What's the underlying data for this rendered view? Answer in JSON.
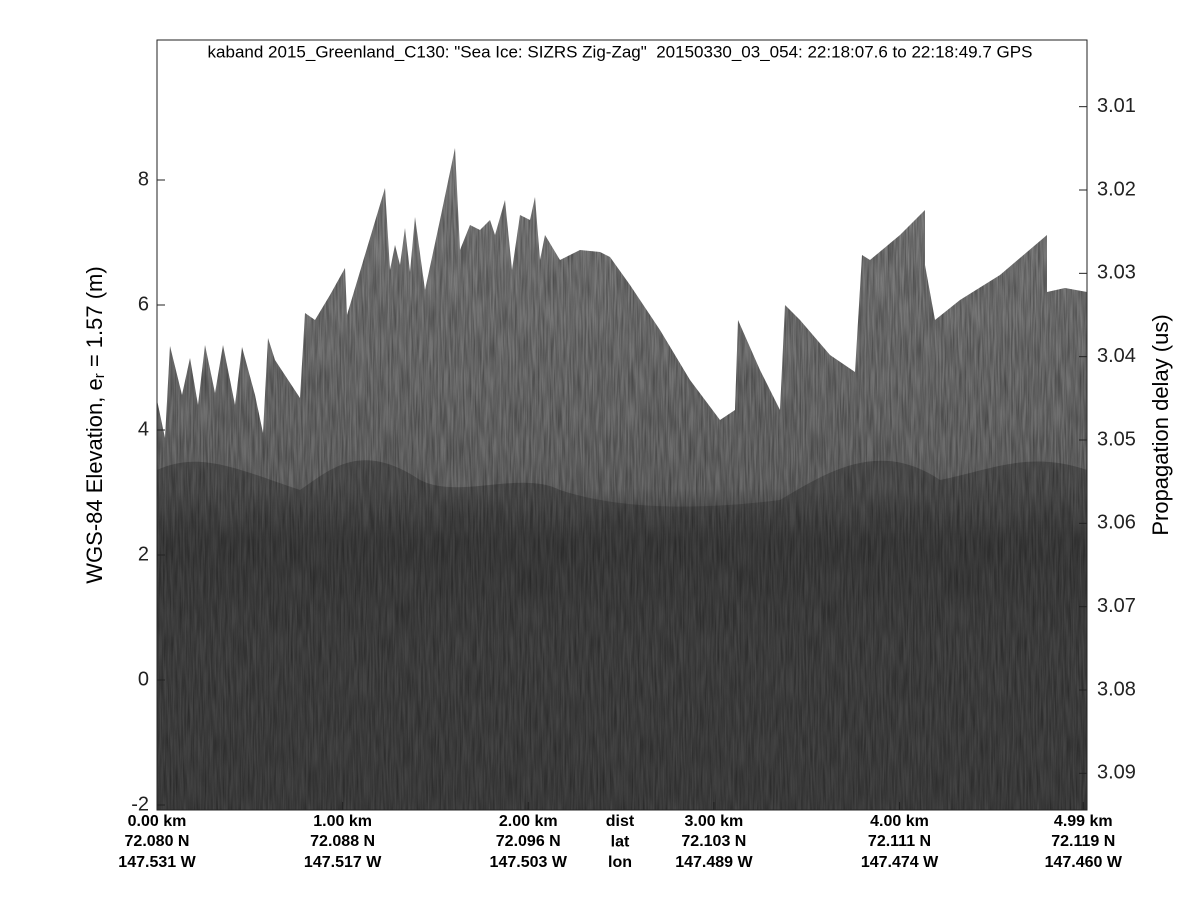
{
  "chart_data": {
    "type": "image",
    "title": "kaband 2015_Greenland_C130: \"Sea Ice: SIZRS Zig-Zag\"  20150330_03_054: 22:18:07.6 to 22:18:49.7 GPS",
    "ylabel_parts": [
      "WGS-84 Elevation, e",
      "r",
      " = 1.57 (m)"
    ],
    "y2label": "Propagation delay (us)",
    "ylim": [
      -2.08,
      10.24
    ],
    "yticks": [
      -2,
      0,
      2,
      4,
      6,
      8
    ],
    "y2lim": [
      3.0944,
      3.002
    ],
    "y2ticks": [
      3.01,
      3.02,
      3.03,
      3.04,
      3.05,
      3.06,
      3.07,
      3.08,
      3.09
    ],
    "xlim": [
      0,
      5.01
    ],
    "xticks": [
      {
        "value": 0,
        "label": "0.00 km"
      },
      {
        "value": 1,
        "label": "1.00 km"
      },
      {
        "value": 2,
        "label": "2.00 km"
      },
      {
        "value": 3,
        "label": "3.00 km"
      },
      {
        "value": 4,
        "label": "4.00 km"
      },
      {
        "value": 4.99,
        "label": "4.99 km"
      }
    ],
    "xtick_lat": [
      "72.080 N",
      "72.088 N",
      "72.096 N",
      "72.103 N",
      "72.111 N",
      "72.119 N"
    ],
    "xtick_lon": [
      "147.531 W",
      "147.517 W",
      "147.503 W",
      "147.489 W",
      "147.474 W",
      "147.460 W"
    ],
    "xrow_labels": [
      "dist",
      "lat",
      "lon"
    ]
  }
}
